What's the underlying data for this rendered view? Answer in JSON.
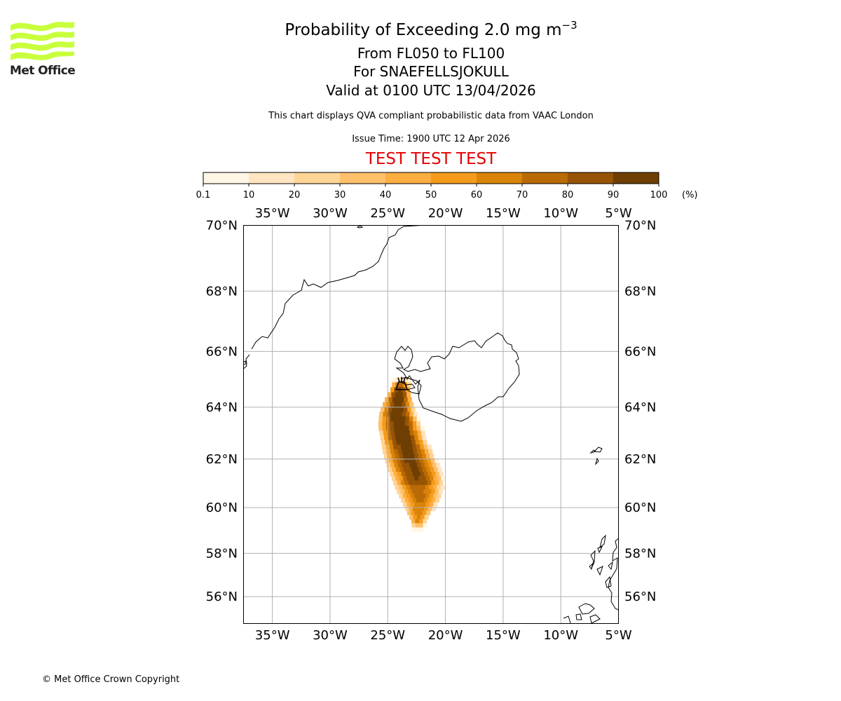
{
  "header": {
    "title_prefix": "Probability of Exceeding 2.0 mg m",
    "title_exponent": "−3",
    "level_range": "From FL050 to FL100",
    "volcano": "For SNAEFELLSJOKULL",
    "valid_time": "Valid at 0100 UTC 13/04/2026",
    "description": "This chart displays QVA compliant probabilistic data from VAAC London",
    "issue_time": "Issue Time: 1900 UTC 12 Apr 2026",
    "test_banner": "TEST TEST TEST",
    "test_color": "#e60000"
  },
  "logo": {
    "icon": "met-office-wave-logo-icon",
    "text": "Met Office",
    "color": "#c8ff3c"
  },
  "footer": {
    "copyright": "© Met Office Crown Copyright"
  },
  "colorbar": {
    "unit": "(%)",
    "ticks": [
      "0.1",
      "10",
      "20",
      "30",
      "40",
      "50",
      "60",
      "70",
      "80",
      "90",
      "100"
    ],
    "colors": [
      "#fff6e6",
      "#ffe5c0",
      "#ffd596",
      "#ffc06a",
      "#ffae42",
      "#f59b1c",
      "#d98308",
      "#ba6a05",
      "#965404",
      "#6e3e03"
    ]
  },
  "map": {
    "lon_range": [
      -37.5,
      -5
    ],
    "lat_range": [
      54.7,
      70
    ],
    "lon_ticks": [
      {
        "value": -35,
        "label": "35°W"
      },
      {
        "value": -30,
        "label": "30°W"
      },
      {
        "value": -25,
        "label": "25°W"
      },
      {
        "value": -20,
        "label": "20°W"
      },
      {
        "value": -15,
        "label": "15°W"
      },
      {
        "value": -10,
        "label": "10°W"
      },
      {
        "value": -5,
        "label": "5°W"
      }
    ],
    "lat_ticks": [
      {
        "value": 70,
        "label": "70°N"
      },
      {
        "value": 68,
        "label": "68°N"
      },
      {
        "value": 66,
        "label": "66°N"
      },
      {
        "value": 64,
        "label": "64°N"
      },
      {
        "value": 62,
        "label": "62°N"
      },
      {
        "value": 60,
        "label": "60°N"
      },
      {
        "value": 58,
        "label": "58°N"
      },
      {
        "value": 56,
        "label": "56°N"
      }
    ],
    "volcano_marker": {
      "name": "Snaefellsjokull",
      "lon": -23.8,
      "lat": 64.8
    },
    "plume_spine": [
      {
        "lat": 64.75,
        "lon": -23.9,
        "w": 0.9
      },
      {
        "lat": 64.3,
        "lon": -24.1,
        "w": 1.3
      },
      {
        "lat": 63.8,
        "lon": -24.2,
        "w": 1.7
      },
      {
        "lat": 63.3,
        "lon": -24.0,
        "w": 2.0
      },
      {
        "lat": 62.8,
        "lon": -23.7,
        "w": 2.1
      },
      {
        "lat": 62.3,
        "lon": -23.3,
        "w": 2.3
      },
      {
        "lat": 61.8,
        "lon": -22.9,
        "w": 2.4
      },
      {
        "lat": 61.3,
        "lon": -22.5,
        "w": 2.4
      },
      {
        "lat": 60.8,
        "lon": -22.3,
        "w": 2.2
      },
      {
        "lat": 60.3,
        "lon": -22.2,
        "w": 1.8
      },
      {
        "lat": 59.8,
        "lon": -22.3,
        "w": 1.2
      },
      {
        "lat": 59.4,
        "lon": -22.4,
        "w": 0.7
      }
    ]
  }
}
